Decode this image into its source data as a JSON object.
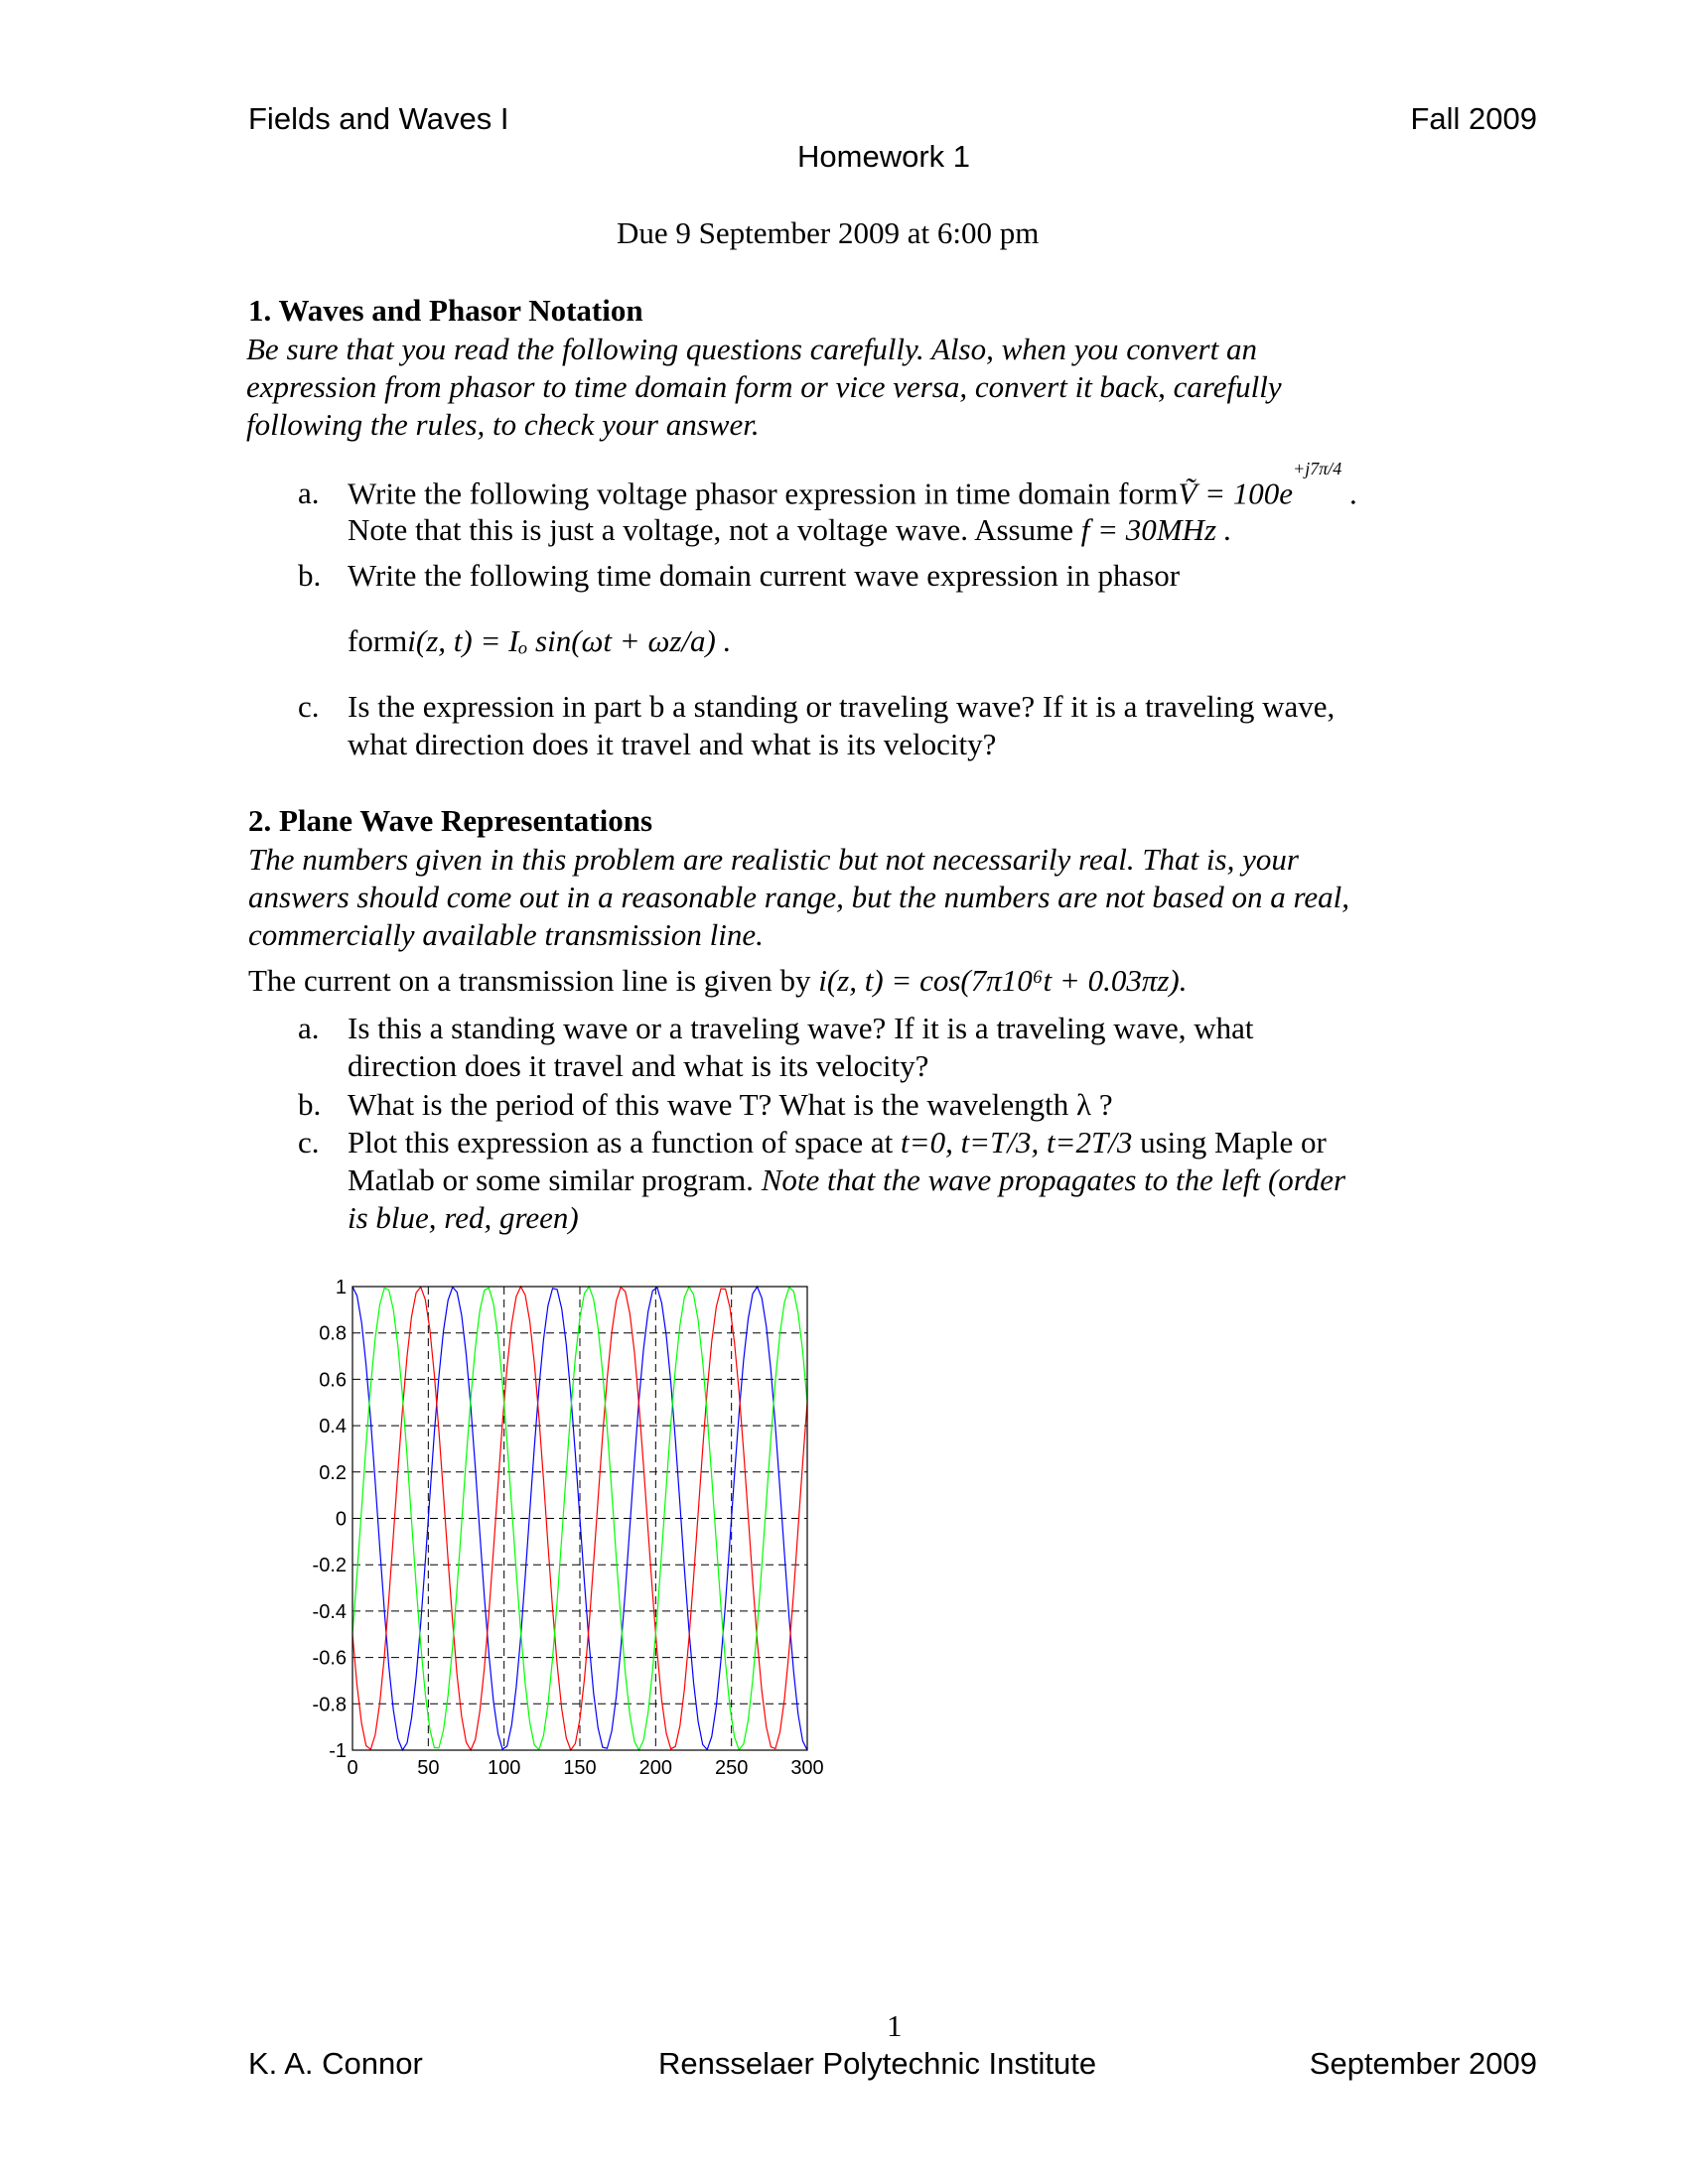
{
  "header": {
    "course": "Fields and Waves I",
    "term": "Fall 2009",
    "title": "Homework  1",
    "due": "Due 9 September 2009 at 6:00 pm"
  },
  "s1": {
    "heading": "1.   Waves and Phasor Notation",
    "intro": [
      "Be sure that you read the following questions carefully. Also, when you convert an",
      "expression from phasor to time domain form or vice versa, convert it back, carefully",
      "following the rules, to check your answer."
    ],
    "items": [
      {
        "marker": "a.",
        "lines": [
          "Write the following voltage phasor expression in time domain form",
          "Note that this is just a voltage, not a voltage wave. Assume"
        ],
        "eq1": "Ṽ = 100e",
        "exp": "+j7π/4",
        "eq2": "f = 30MHz ."
      },
      {
        "marker": "b.",
        "lines": [
          "Write the following time domain current wave expression in phasor",
          "form"
        ],
        "eq": "i(z, t) = Iₒ sin(ωt + ωz/a) ."
      },
      {
        "marker": "c.",
        "lines": [
          "Is the expression in part b a standing or traveling wave? If it is a traveling wave,",
          "what direction does it travel and what is its velocity?"
        ]
      }
    ]
  },
  "s2": {
    "heading": "2.   Plane Wave Representations",
    "intro": [
      "The numbers given in this problem are realistic but not necessarily real. That is, your",
      "answers should come out in a reasonable range, but the numbers are not based on a real,",
      "commercially available transmission line."
    ],
    "given": "The current on a transmission line is given by",
    "given_eq": "i(z, t) = cos(7π10⁶t + 0.03πz).",
    "items": [
      {
        "marker": "a.",
        "lines": [
          "Is this a standing wave or a traveling wave? If it is a traveling wave, what",
          "direction does it travel and what is its velocity?"
        ]
      },
      {
        "marker": "b.",
        "lines": [
          "What is the period of this wave T? What is the wavelength  λ ?"
        ]
      },
      {
        "marker": "c.",
        "line1": "Plot this expression as a function of space at ",
        "line1_it": "t=0, t=T/3, t=2T/3",
        "line1_end": " using Maple or",
        "line2": "Matlab or some similar program. ",
        "line2_it": "Note that the wave propagates to the left (order",
        "line3_it": "is blue, red, green)"
      }
    ]
  },
  "chart_data": {
    "type": "line",
    "title": "",
    "xlabel": "",
    "ylabel": "",
    "xlim": [
      0,
      300
    ],
    "ylim": [
      -1,
      1
    ],
    "grid": true,
    "xticks": [
      "0",
      "50",
      "100",
      "150",
      "200",
      "250",
      "300"
    ],
    "yticks": [
      "1",
      "0.8",
      "0.6",
      "0.4",
      "0.2",
      "0",
      "-0.2",
      "-0.4",
      "-0.6",
      "-0.8",
      "-1"
    ],
    "function": "cos(0.03*pi*z + phase)",
    "sample_step": 3,
    "series": [
      {
        "phase_rad": 0,
        "color": "#0000ff"
      },
      {
        "phase_rad": 2.0944,
        "color": "#ff0000"
      },
      {
        "phase_rad": 4.1888,
        "color": "#00ff00"
      }
    ]
  },
  "footer": {
    "page": "1",
    "author": "K. A. Connor",
    "institution": "Rensselaer Polytechnic Institute",
    "date": "September 2009"
  }
}
